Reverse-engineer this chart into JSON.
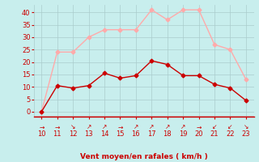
{
  "hours": [
    10,
    11,
    12,
    13,
    14,
    15,
    16,
    17,
    18,
    19,
    20,
    21,
    22,
    23
  ],
  "wind_avg": [
    0,
    10.5,
    9.5,
    10.5,
    15.5,
    13.5,
    14.5,
    20.5,
    19,
    14.5,
    14.5,
    11,
    9.5,
    4.5
  ],
  "wind_gust": [
    0,
    24,
    24,
    30,
    33,
    33,
    33,
    41,
    37,
    41,
    41,
    27,
    25,
    13
  ],
  "wind_avg_color": "#cc0000",
  "wind_gust_color": "#ffaaaa",
  "bg_color": "#c8eeed",
  "grid_color": "#aacccc",
  "xlabel": "Vent moyen/en rafales ( km/h )",
  "xlabel_color": "#cc0000",
  "ylabel_ticks": [
    0,
    5,
    10,
    15,
    20,
    25,
    30,
    35,
    40
  ],
  "ylim": [
    -2,
    43
  ],
  "xlim": [
    9.5,
    23.5
  ],
  "tick_color": "#cc0000",
  "arrow_symbols": [
    "→",
    "→",
    "↘",
    "↗",
    "↗",
    "→",
    "↗",
    "↗",
    "↗",
    "↗",
    "→",
    "↙",
    "↙",
    "↘"
  ]
}
